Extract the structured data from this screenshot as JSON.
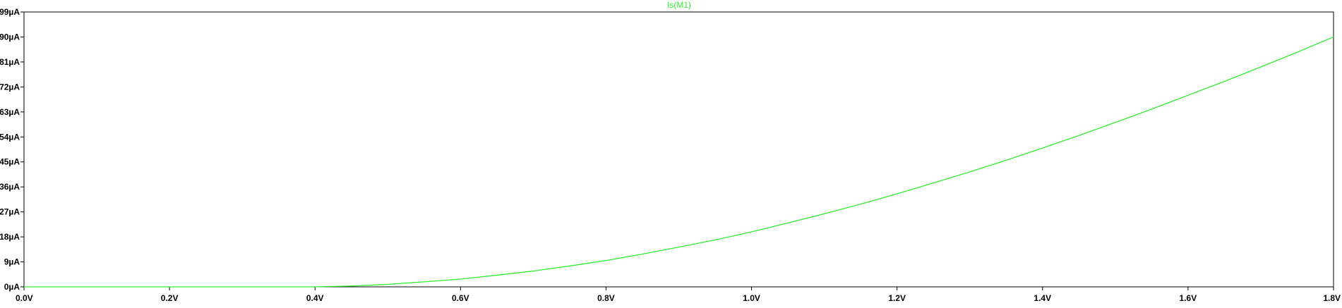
{
  "chart_data": {
    "type": "line",
    "title": "Is(M1)",
    "title_color": "#33ee33",
    "series": [
      {
        "name": "Is(M1)",
        "color": "#33ee33",
        "x": [
          0.0,
          0.1,
          0.2,
          0.3,
          0.4,
          0.45,
          0.5,
          0.55,
          0.6,
          0.65,
          0.7,
          0.75,
          0.8,
          0.85,
          0.9,
          0.95,
          1.0,
          1.05,
          1.1,
          1.15,
          1.2,
          1.25,
          1.3,
          1.35,
          1.4,
          1.45,
          1.5,
          1.55,
          1.6,
          1.65,
          1.7,
          1.75,
          1.8
        ],
        "y": [
          0,
          0,
          0,
          0,
          0,
          0.3,
          0.9,
          1.8,
          2.8,
          4.2,
          5.7,
          7.5,
          9.5,
          11.8,
          14.3,
          16.9,
          19.8,
          23.0,
          26.3,
          29.8,
          33.5,
          37.4,
          41.4,
          45.6,
          50.0,
          54.5,
          59.2,
          64.0,
          69.0,
          74.0,
          79.2,
          84.5,
          90.0
        ]
      }
    ],
    "xlim": [
      0,
      1.8
    ],
    "ylim": [
      0,
      99
    ],
    "xticks": [
      {
        "v": 0.0,
        "label": "0.0V"
      },
      {
        "v": 0.2,
        "label": "0.2V"
      },
      {
        "v": 0.4,
        "label": "0.4V"
      },
      {
        "v": 0.6,
        "label": "0.6V"
      },
      {
        "v": 0.8,
        "label": "0.8V"
      },
      {
        "v": 1.0,
        "label": "1.0V"
      },
      {
        "v": 1.2,
        "label": "1.2V"
      },
      {
        "v": 1.4,
        "label": "1.4V"
      },
      {
        "v": 1.6,
        "label": "1.6V"
      },
      {
        "v": 1.8,
        "label": "1.8V"
      }
    ],
    "yticks": [
      {
        "v": 0,
        "label": "0µA"
      },
      {
        "v": 9,
        "label": "9µA"
      },
      {
        "v": 18,
        "label": "18µA"
      },
      {
        "v": 27,
        "label": "27µA"
      },
      {
        "v": 36,
        "label": "36µA"
      },
      {
        "v": 45,
        "label": "45µA"
      },
      {
        "v": 54,
        "label": "54µA"
      },
      {
        "v": 63,
        "label": "63µA"
      },
      {
        "v": 72,
        "label": "72µA"
      },
      {
        "v": 81,
        "label": "81µA"
      },
      {
        "v": 90,
        "label": "90µA"
      },
      {
        "v": 99,
        "label": "99µA"
      }
    ],
    "grid": false,
    "axis_color": "#000000",
    "background": "#ffffff"
  }
}
